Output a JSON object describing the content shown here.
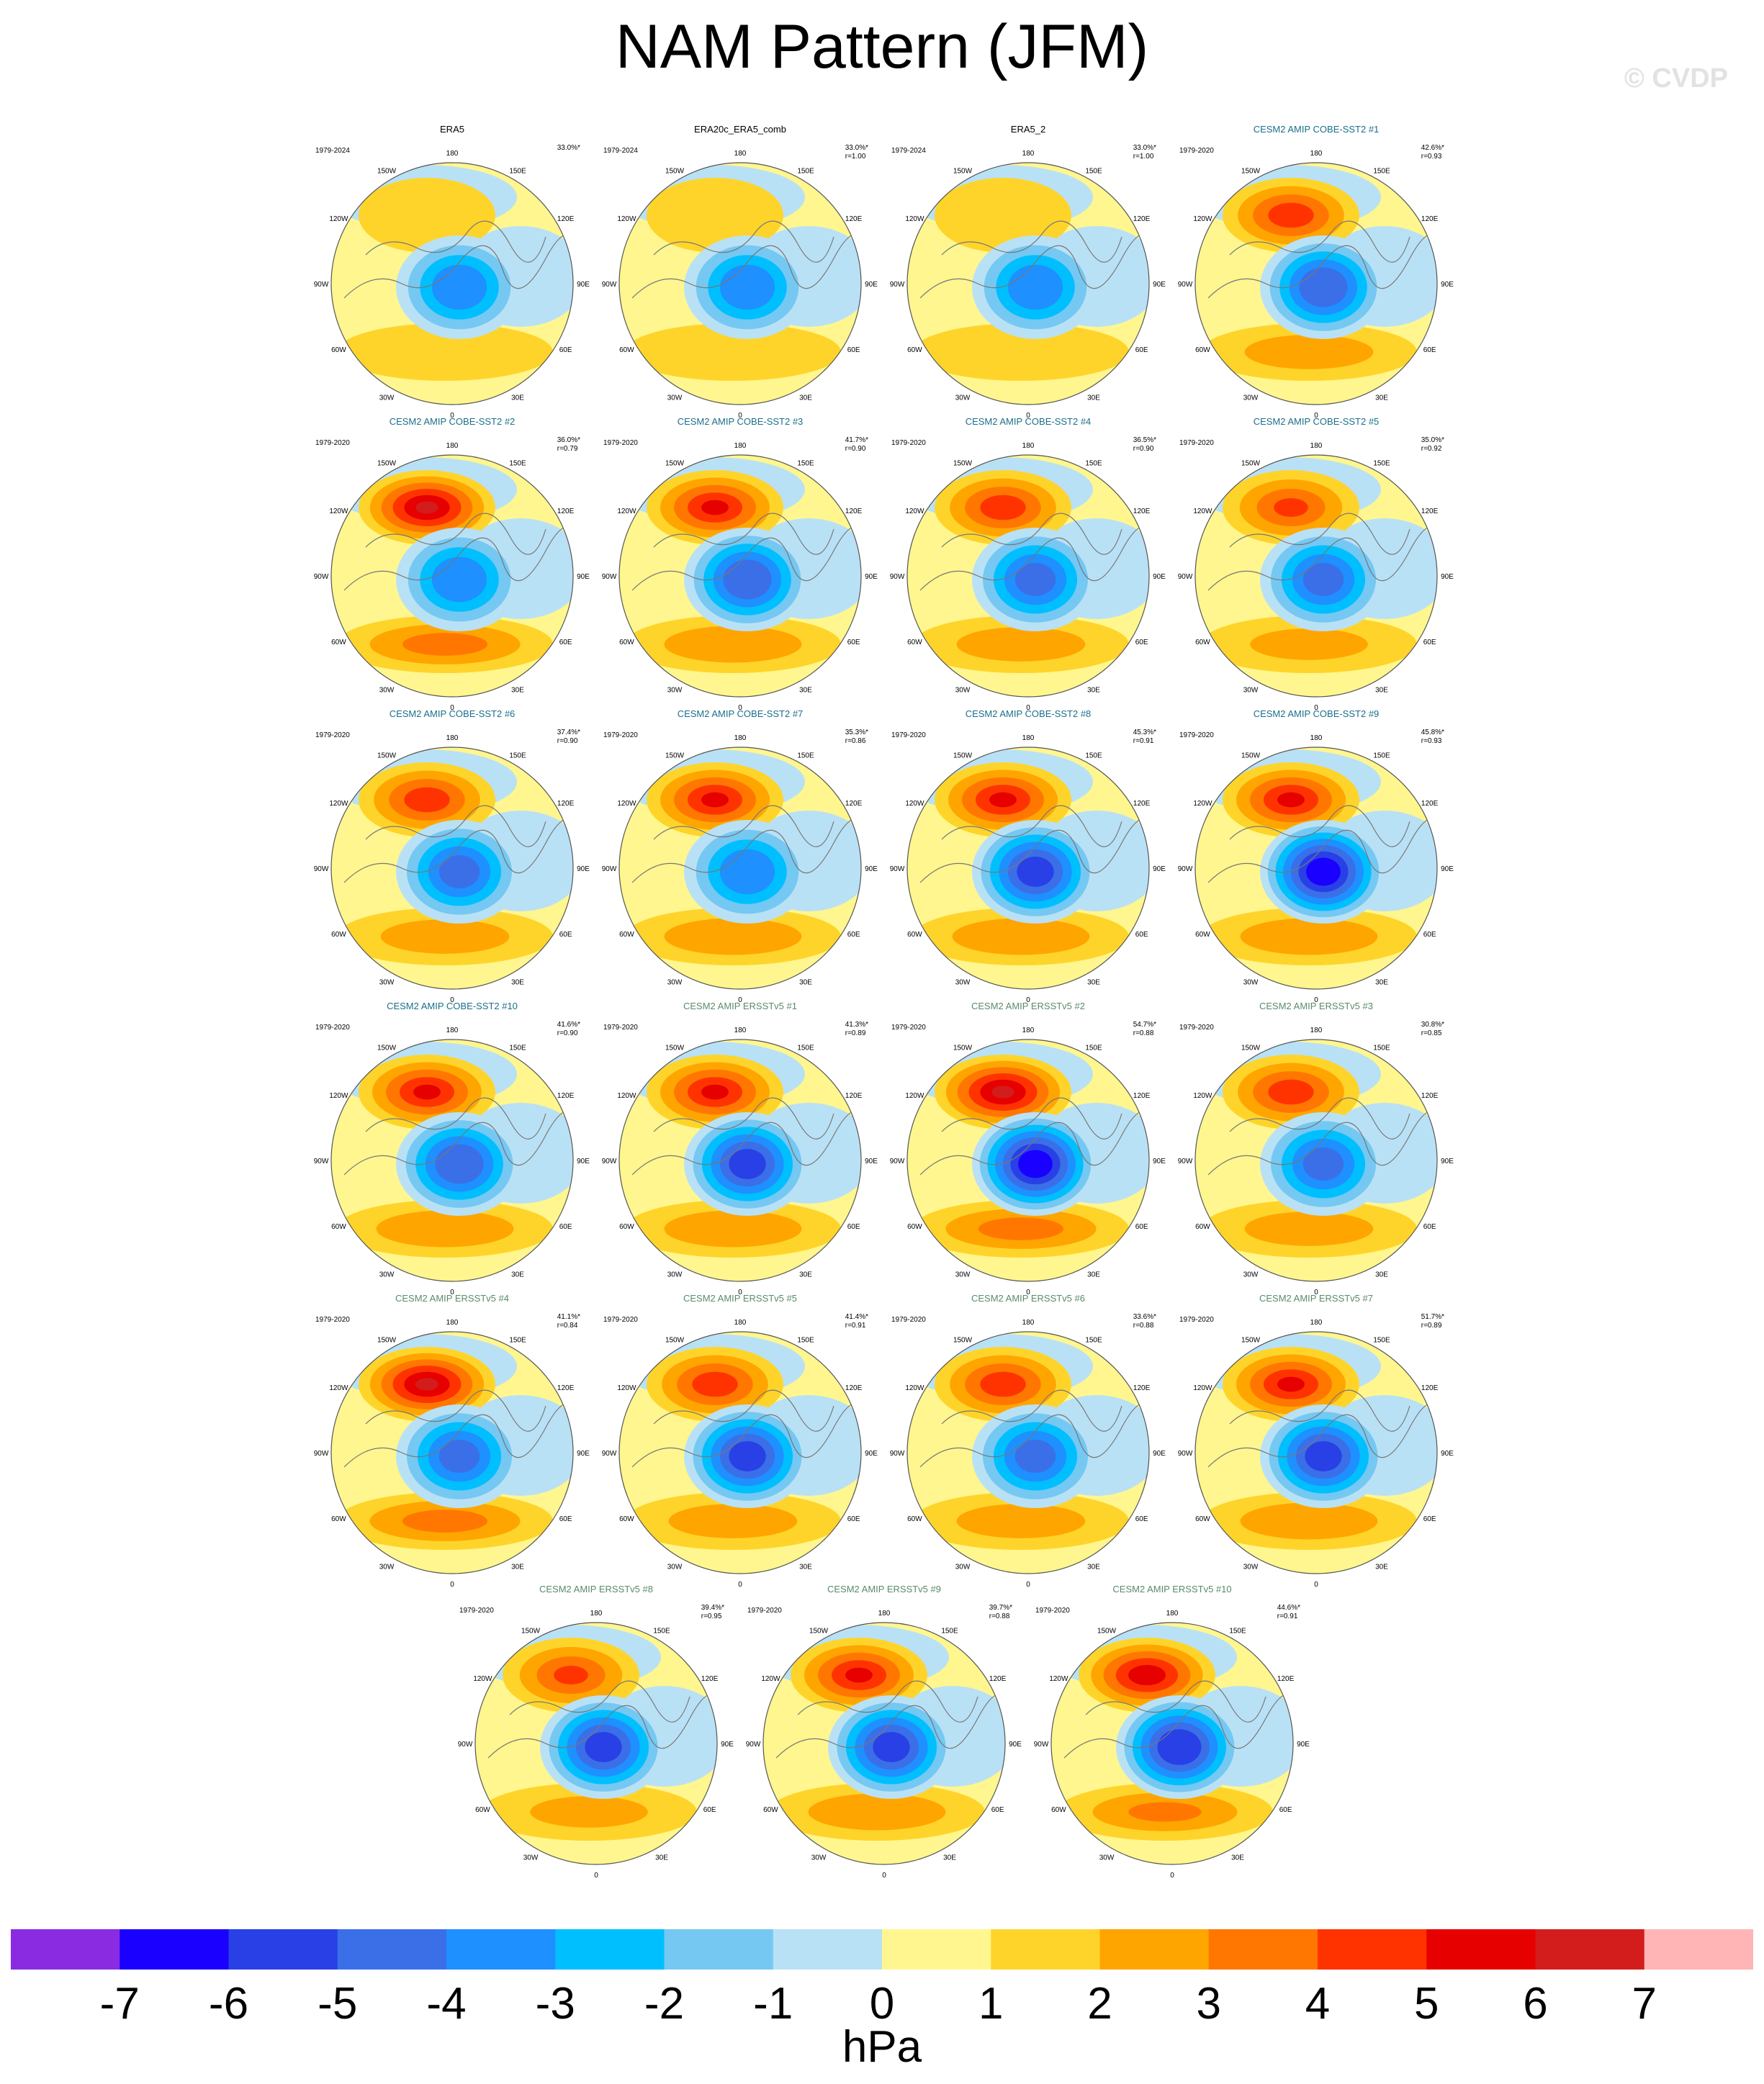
{
  "title": "NAM Pattern (JFM)",
  "watermark": "© CVDP",
  "lon_labels": [
    "180",
    "150E",
    "120E",
    "90E",
    "60E",
    "30E",
    "0",
    "30W",
    "60W",
    "90W",
    "120W",
    "150W"
  ],
  "chart_data": {
    "type": "heatmap",
    "title": "NAM Pattern (JFM)",
    "colorbar": {
      "units": "hPa",
      "ticks": [
        -7,
        -6,
        -5,
        -4,
        -3,
        -2,
        -1,
        0,
        1,
        2,
        3,
        4,
        5,
        6,
        7
      ],
      "colors": [
        "#8a2be2",
        "#1a00ff",
        "#2940e6",
        "#3a6fe8",
        "#1e90ff",
        "#00bfff",
        "#75c8f2",
        "#b9e1f5",
        "#fff68f",
        "#ffd42a",
        "#ffa500",
        "#ff7700",
        "#ff3300",
        "#e60000",
        "#d31c1c",
        "#ffb5b5"
      ]
    },
    "panels": [
      {
        "title": "ERA5",
        "period": "1979-2024",
        "pct": "33.0%*",
        "r": "",
        "group": "era",
        "low": -4.5,
        "high": 1.5
      },
      {
        "title": "ERA20c_ERA5_comb",
        "period": "1979-2024",
        "pct": "33.0%*",
        "r": "r=1.00",
        "group": "era",
        "low": -4.5,
        "high": 1.5
      },
      {
        "title": "ERA5_2",
        "period": "1979-2024",
        "pct": "33.0%*",
        "r": "r=1.00",
        "group": "era",
        "low": -4.5,
        "high": 1.5
      },
      {
        "title": "CESM2 AMIP COBE-SST2 #1",
        "period": "1979-2020",
        "pct": "42.6%*",
        "r": "r=0.93",
        "group": "cobe",
        "low": -5.5,
        "high": 4.5
      },
      {
        "title": "CESM2 AMIP COBE-SST2 #2",
        "period": "1979-2020",
        "pct": "36.0%*",
        "r": "r=0.79",
        "group": "cobe",
        "low": -4.5,
        "high": 6.0
      },
      {
        "title": "CESM2 AMIP COBE-SST2 #3",
        "period": "1979-2020",
        "pct": "41.7%*",
        "r": "r=0.90",
        "group": "cobe",
        "low": -5.5,
        "high": 5.0
      },
      {
        "title": "CESM2 AMIP COBE-SST2 #4",
        "period": "1979-2020",
        "pct": "36.5%*",
        "r": "r=0.90",
        "group": "cobe",
        "low": -5.0,
        "high": 4.5
      },
      {
        "title": "CESM2 AMIP COBE-SST2 #5",
        "period": "1979-2020",
        "pct": "35.0%*",
        "r": "r=0.92",
        "group": "cobe",
        "low": -5.0,
        "high": 4.0
      },
      {
        "title": "CESM2 AMIP COBE-SST2 #6",
        "period": "1979-2020",
        "pct": "37.4%*",
        "r": "r=0.90",
        "group": "cobe",
        "low": -5.0,
        "high": 4.5
      },
      {
        "title": "CESM2 AMIP COBE-SST2 #7",
        "period": "1979-2020",
        "pct": "35.3%*",
        "r": "r=0.86",
        "group": "cobe",
        "low": -4.5,
        "high": 5.0
      },
      {
        "title": "CESM2 AMIP COBE-SST2 #8",
        "period": "1979-2020",
        "pct": "45.3%*",
        "r": "r=0.91",
        "group": "cobe",
        "low": -6.0,
        "high": 5.0
      },
      {
        "title": "CESM2 AMIP COBE-SST2 #9",
        "period": "1979-2020",
        "pct": "45.8%*",
        "r": "r=0.93",
        "group": "cobe",
        "low": -7.0,
        "high": 5.0
      },
      {
        "title": "CESM2 AMIP COBE-SST2 #10",
        "period": "1979-2020",
        "pct": "41.6%*",
        "r": "r=0.90",
        "group": "cobe",
        "low": -5.5,
        "high": 5.0
      },
      {
        "title": "CESM2 AMIP ERSSTv5 #1",
        "period": "1979-2020",
        "pct": "41.3%*",
        "r": "r=0.89",
        "group": "ersst",
        "low": -6.0,
        "high": 5.0
      },
      {
        "title": "CESM2 AMIP ERSSTv5 #2",
        "period": "1979-2020",
        "pct": "54.7%*",
        "r": "r=0.88",
        "group": "ersst",
        "low": -7.0,
        "high": 6.0
      },
      {
        "title": "CESM2 AMIP ERSSTv5 #3",
        "period": "1979-2020",
        "pct": "30.8%*",
        "r": "r=0.85",
        "group": "ersst",
        "low": -5.0,
        "high": 4.5
      },
      {
        "title": "CESM2 AMIP ERSSTv5 #4",
        "period": "1979-2020",
        "pct": "41.1%*",
        "r": "r=0.84",
        "group": "ersst",
        "low": -5.0,
        "high": 6.0
      },
      {
        "title": "CESM2 AMIP ERSSTv5 #5",
        "period": "1979-2020",
        "pct": "41.4%*",
        "r": "r=0.91",
        "group": "ersst",
        "low": -6.0,
        "high": 4.5
      },
      {
        "title": "CESM2 AMIP ERSSTv5 #6",
        "period": "1979-2020",
        "pct": "33.6%*",
        "r": "r=0.88",
        "group": "ersst",
        "low": -5.0,
        "high": 4.5
      },
      {
        "title": "CESM2 AMIP ERSSTv5 #7",
        "period": "1979-2020",
        "pct": "51.7%*",
        "r": "r=0.89",
        "group": "ersst",
        "low": -6.0,
        "high": 5.0
      },
      {
        "title": "CESM2 AMIP ERSSTv5 #8",
        "period": "1979-2020",
        "pct": "39.4%*",
        "r": "r=0.95",
        "group": "ersst",
        "low": -6.0,
        "high": 4.0
      },
      {
        "title": "CESM2 AMIP ERSSTv5 #9",
        "period": "1979-2020",
        "pct": "39.7%*",
        "r": "r=0.88",
        "group": "ersst",
        "low": -6.0,
        "high": 5.0
      },
      {
        "title": "CESM2 AMIP ERSSTv5 #10",
        "period": "1979-2020",
        "pct": "44.6%*",
        "r": "r=0.91",
        "group": "ersst",
        "low": -6.5,
        "high": 5.5
      }
    ]
  }
}
